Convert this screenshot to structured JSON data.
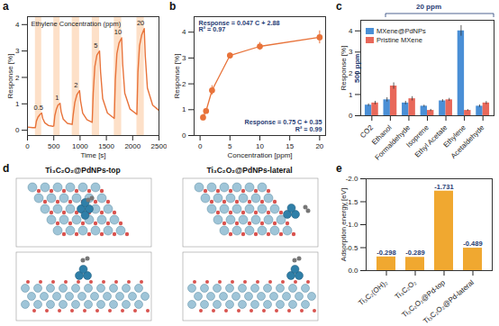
{
  "chart_data": [
    {
      "panel": "a",
      "type": "line",
      "title": "Ethylene Concentration (ppm)",
      "x_label": "Time [s]",
      "y_label": "Response [%]",
      "x": [
        0,
        100,
        150,
        170,
        200,
        240,
        270,
        290,
        330,
        400,
        480,
        500,
        520,
        550,
        580,
        620,
        640,
        680,
        760,
        850,
        870,
        900,
        940,
        990,
        1010,
        1050,
        1130,
        1230,
        1250,
        1280,
        1320,
        1370,
        1390,
        1430,
        1520,
        1650,
        1670,
        1700,
        1740,
        1790,
        1810,
        1850,
        1950,
        2080,
        2100,
        2130,
        2170,
        2220,
        2240,
        2280,
        2380,
        2500
      ],
      "values": [
        0.12,
        0.1,
        0.1,
        0.35,
        0.5,
        0.6,
        0.65,
        0.45,
        0.28,
        0.18,
        0.15,
        0.16,
        0.55,
        0.8,
        0.95,
        1.02,
        0.7,
        0.42,
        0.26,
        0.22,
        0.6,
        1.05,
        1.35,
        1.5,
        1.1,
        0.65,
        0.4,
        0.3,
        1.4,
        2.4,
        2.85,
        3.0,
        2.2,
        1.2,
        0.65,
        0.45,
        1.9,
        2.9,
        3.3,
        3.5,
        2.5,
        1.4,
        0.8,
        0.6,
        2.2,
        3.2,
        3.6,
        3.85,
        2.8,
        1.6,
        0.95,
        0.75
      ],
      "color": "#e8733a",
      "bands": [
        {
          "start": 150,
          "end": 270,
          "label": "0.5"
        },
        {
          "start": 500,
          "end": 620,
          "label": "1"
        },
        {
          "start": 850,
          "end": 990,
          "label": "2"
        },
        {
          "start": 1230,
          "end": 1370,
          "label": "5"
        },
        {
          "start": 1650,
          "end": 1790,
          "label": "10"
        },
        {
          "start": 2080,
          "end": 2220,
          "label": "20"
        }
      ],
      "xlim": [
        0,
        2500
      ],
      "xticks": [
        0,
        500,
        1000,
        1500,
        2000,
        2500
      ],
      "ylim": [
        -0.2,
        4.3
      ],
      "yticks": [
        0,
        1,
        2,
        3,
        4
      ]
    },
    {
      "panel": "b",
      "type": "scatter",
      "x_label": "Concentration [ppm]",
      "y_label": "Response [%]",
      "x": [
        0.5,
        1,
        2,
        5,
        10,
        20
      ],
      "values": [
        0.7,
        0.95,
        1.75,
        3.1,
        3.45,
        3.8
      ],
      "errors": [
        0.12,
        0.1,
        0.18,
        0.1,
        0.15,
        0.25
      ],
      "color": "#e8733a",
      "marker": "circle",
      "line_style": "solid",
      "annotations": [
        "Response = 0.047 C + 2.88",
        "R² = 0.97",
        "Response = 0.75 C + 0.35",
        "R² = 0.99"
      ],
      "xlim": [
        -1,
        21
      ],
      "xticks": [
        0,
        5,
        10,
        15,
        20
      ],
      "ylim": [
        0,
        4.6
      ],
      "yticks": [
        0,
        1,
        2,
        3,
        4
      ]
    },
    {
      "panel": "c",
      "type": "bar",
      "y_label": "Response [%]",
      "categories": [
        "CO2",
        "Ethanol",
        "Formaldehyde",
        "Isoprene",
        "Ethyl Acetate",
        "Ethylene",
        "Acetaldehyde"
      ],
      "series": [
        {
          "name": "MXene@PdNPs",
          "color": "#4a8fd6",
          "values": [
            0.5,
            0.75,
            0.6,
            0.45,
            0.7,
            4.0,
            0.45
          ],
          "errors": [
            0.06,
            0.1,
            0.08,
            0.05,
            0.06,
            0.25,
            0.06
          ]
        },
        {
          "name": "Pristine MXene",
          "color": "#e8685a",
          "values": [
            0.6,
            1.4,
            0.8,
            0.25,
            0.75,
            0.25,
            0.6
          ],
          "errors": [
            0.08,
            0.15,
            0.1,
            0.05,
            0.07,
            0.04,
            0.07
          ]
        }
      ],
      "annotations": [
        "500 ppm",
        "20 ppm"
      ],
      "legend": "top-left",
      "ylim": [
        0,
        4.5
      ],
      "yticks": [
        0,
        1,
        2,
        3,
        4
      ]
    },
    {
      "panel": "d",
      "type": "diagram",
      "titles": [
        "Ti₃C₂O₂@PdNPs-top",
        "Ti₃C₂O₂@PdNPs-lateral"
      ]
    },
    {
      "panel": "e",
      "type": "bar",
      "y_label": "Adsorption energy [eV]",
      "categories": [
        "Ti₃C₂(OH)₂",
        "Ti₃C₂O₂",
        "Ti₃C₂O₂@Pd-top",
        "Ti₃C₂O₂@Pd-lateral"
      ],
      "values": [
        -0.298,
        -0.289,
        -1.731,
        -0.489
      ],
      "color": "#f0a830",
      "data_labels": true,
      "ylim": [
        0,
        -2
      ],
      "yticks": [
        {
          "value": 0,
          "label": "0.0"
        },
        -0.5,
        {
          "value": -1,
          "label": "-1.0"
        },
        -1.5,
        {
          "value": -2,
          "label": "-2.0"
        }
      ]
    }
  ]
}
